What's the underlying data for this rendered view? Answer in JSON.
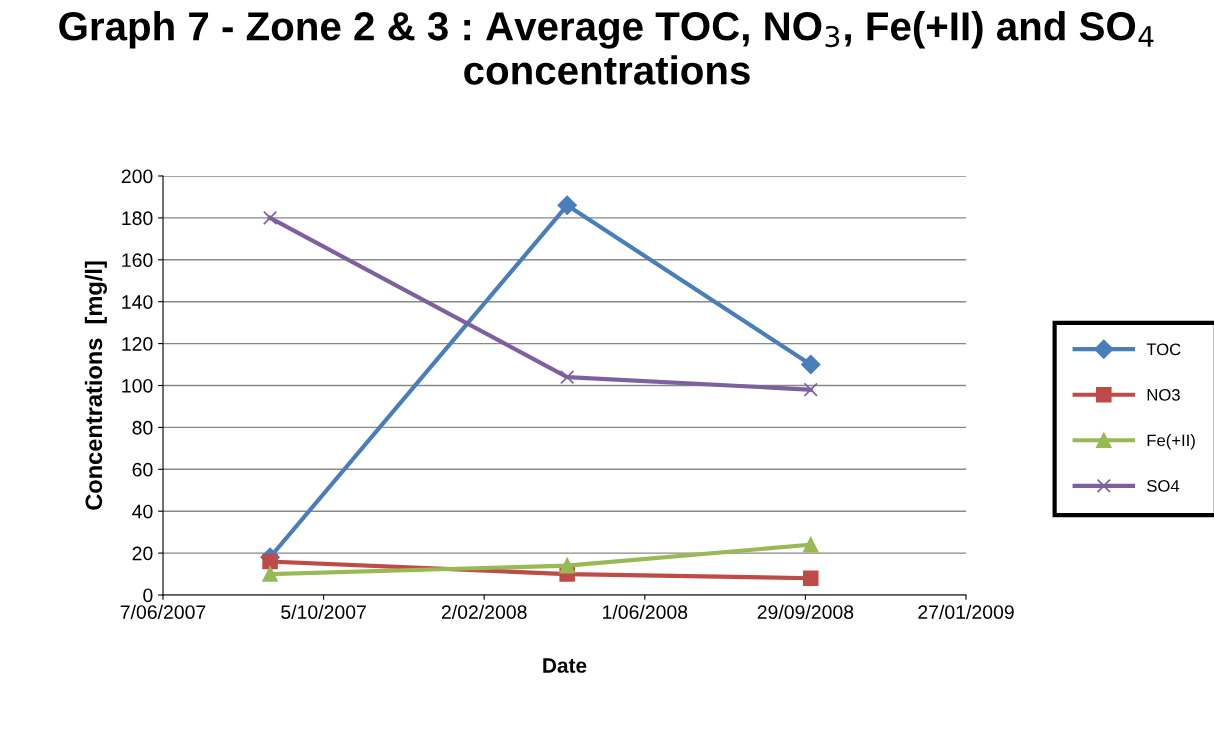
{
  "chart_data": {
    "type": "line",
    "title": "Graph 7 - Zone 2 & 3 : Average TOC, NO$_{3}$, Fe(+II) and SO$_{4}$ concentrations",
    "xlabel": "Date",
    "ylabel": "Concentrations  [mg/l]",
    "series": [
      {
        "name": "TOC",
        "color": "#4a7ebb",
        "marker": "diamond",
        "x": [
          "2007-08-26",
          "2008-04-04",
          "2008-10-03"
        ],
        "values": [
          18,
          186,
          110
        ]
      },
      {
        "name": "NO3",
        "color": "#be4b48",
        "marker": "square",
        "x": [
          "2007-08-26",
          "2008-04-04",
          "2008-10-03"
        ],
        "values": [
          16,
          10,
          8
        ]
      },
      {
        "name": "Fe(+II)",
        "color": "#98b954",
        "marker": "triangle",
        "x": [
          "2007-08-26",
          "2008-04-04",
          "2008-10-03"
        ],
        "values": [
          10,
          14,
          24
        ]
      },
      {
        "name": "SO4",
        "color": "#7d60a0",
        "marker": "cross",
        "x": [
          "2007-08-26",
          "2008-04-04",
          "2008-10-03"
        ],
        "values": [
          180,
          104,
          98
        ]
      }
    ],
    "xlim": [
      "2007-06-07",
      "2009-01-27"
    ],
    "xticks": [
      {
        "value": "2007-06-07",
        "label": "7/06/2007"
      },
      {
        "value": "2007-10-05",
        "label": "5/10/2007"
      },
      {
        "value": "2008-02-02",
        "label": "2/02/2008"
      },
      {
        "value": "2008-06-01",
        "label": "1/06/2008"
      },
      {
        "value": "2008-09-29",
        "label": "29/09/2008"
      },
      {
        "value": "2009-01-27",
        "label": "27/01/2009"
      }
    ],
    "ylim": [
      0,
      200
    ],
    "yticks": [
      0,
      20,
      40,
      60,
      80,
      100,
      120,
      140,
      160,
      180,
      200
    ],
    "grid": "y",
    "legend": "right",
    "line_style": "solid"
  }
}
